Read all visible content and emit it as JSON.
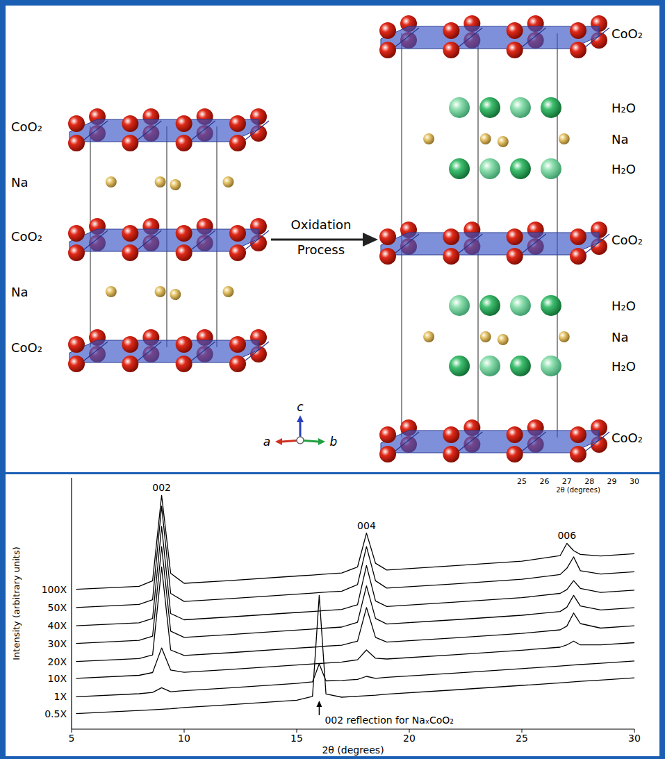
{
  "diagram": {
    "left": {
      "layers": [
        {
          "label": "CoO₂",
          "type": "slab"
        },
        {
          "label": "Na",
          "type": "ion"
        },
        {
          "label": "CoO₂",
          "type": "slab"
        },
        {
          "label": "Na",
          "type": "ion"
        },
        {
          "label": "CoO₂",
          "type": "slab"
        }
      ]
    },
    "arrow": {
      "lines": [
        "Oxidation",
        "Process"
      ]
    },
    "right": {
      "layers": [
        {
          "label": "CoO₂",
          "type": "slab"
        },
        {
          "label": "H₂O",
          "type": "water"
        },
        {
          "label": "Na",
          "type": "ion"
        },
        {
          "label": "H₂O",
          "type": "water"
        },
        {
          "label": "CoO₂",
          "type": "slab"
        },
        {
          "label": "H₂O",
          "type": "water"
        },
        {
          "label": "Na",
          "type": "ion"
        },
        {
          "label": "H₂O",
          "type": "water"
        },
        {
          "label": "CoO₂",
          "type": "slab"
        }
      ]
    },
    "axes": {
      "c": "c",
      "a": "a",
      "b": "b"
    }
  },
  "chart_data": {
    "type": "line",
    "x": [
      5.2,
      8,
      8.6,
      9.0,
      9.4,
      10,
      12,
      15,
      15.7,
      16.0,
      16.3,
      17,
      17.7,
      18.1,
      18.5,
      19,
      22,
      25,
      26.7,
      27.0,
      27.3,
      27.6,
      28.5,
      30
    ],
    "series": [
      {
        "name": "100X",
        "color": "#000000",
        "values": [
          55.6,
          56.8,
          59.0,
          93.0,
          62.0,
          58.0,
          59.1,
          60.9,
          61.3,
          61.5,
          61.7,
          62.1,
          64.5,
          78.0,
          66.0,
          63.3,
          65.0,
          66.8,
          69.0,
          73.9,
          71.0,
          69.5,
          68.9,
          69.8
        ]
      },
      {
        "name": "50X",
        "color": "#000000",
        "values": [
          48.4,
          49.6,
          51.5,
          88.7,
          54.0,
          50.8,
          51.9,
          53.7,
          54.1,
          54.3,
          54.5,
          54.9,
          57.5,
          72.6,
          59.0,
          56.1,
          57.8,
          59.6,
          61.5,
          64.0,
          68.5,
          63.0,
          61.7,
          62.6
        ]
      },
      {
        "name": "40X",
        "color": "#000000",
        "values": [
          41.1,
          42.3,
          44.0,
          80.6,
          46.0,
          43.5,
          44.6,
          46.4,
          46.8,
          47.0,
          47.2,
          47.6,
          49.5,
          65.1,
          51.0,
          48.8,
          50.5,
          52.3,
          54.0,
          55.5,
          59.1,
          56.0,
          54.4,
          55.3
        ]
      },
      {
        "name": "30X",
        "color": "#000000",
        "values": [
          34.1,
          35.3,
          37.0,
          72.6,
          39.0,
          36.5,
          37.6,
          39.4,
          39.8,
          40.0,
          40.2,
          40.6,
          42.5,
          57.0,
          44.0,
          41.8,
          43.5,
          45.3,
          46.8,
          48.5,
          53.2,
          49.0,
          47.4,
          48.3
        ]
      },
      {
        "name": "20X",
        "color": "#000000",
        "values": [
          26.9,
          28.1,
          29.5,
          64.5,
          31.5,
          29.3,
          30.4,
          32.2,
          32.6,
          32.8,
          33.0,
          33.4,
          35.0,
          48.4,
          36.5,
          34.6,
          36.3,
          38.1,
          39.5,
          41.0,
          46.2,
          42.0,
          40.2,
          41.1
        ]
      },
      {
        "name": "10X",
        "color": "#000000",
        "values": [
          20.2,
          21.4,
          22.5,
          32.3,
          23.5,
          22.6,
          23.7,
          25.5,
          25.9,
          26.1,
          26.3,
          26.7,
          27.6,
          31.5,
          28.2,
          27.9,
          29.6,
          31.4,
          32.6,
          33.5,
          35.0,
          33.5,
          33.5,
          34.4
        ]
      },
      {
        "name": "1X",
        "color": "#000000",
        "values": [
          12.9,
          14.1,
          14.6,
          16.5,
          14.9,
          15.3,
          16.4,
          18.2,
          18.8,
          26.0,
          19.2,
          19.4,
          19.8,
          21.0,
          20.2,
          20.6,
          22.3,
          24.1,
          25.1,
          25.3,
          25.5,
          25.7,
          26.2,
          27.1
        ]
      },
      {
        "name": "0.5X",
        "color": "#000000",
        "values": [
          6.2,
          7.4,
          7.7,
          7.9,
          8.1,
          8.6,
          9.7,
          11.5,
          13.0,
          53.2,
          14.0,
          12.7,
          13.1,
          13.3,
          13.5,
          13.9,
          15.6,
          17.4,
          18.4,
          18.6,
          18.8,
          19.0,
          19.5,
          20.4
        ]
      }
    ],
    "xlim": [
      5,
      30
    ],
    "xticks": [
      5,
      10,
      15,
      20,
      25,
      30
    ],
    "ylim": [
      0,
      100
    ],
    "x_label": "2θ (degrees)",
    "y_label": "Intensity (arbitrary units)",
    "tick_labels": "x",
    "peak_labels": [
      {
        "x": 9.0,
        "text": "002"
      },
      {
        "x": 18.1,
        "text": "004"
      },
      {
        "x": 27.0,
        "text": "006"
      }
    ],
    "top_axis": {
      "ticks": [
        25,
        26,
        27,
        28,
        29,
        30
      ],
      "label": "2θ (degrees)"
    },
    "annotation": {
      "x": 16.0,
      "text": "002 reflection for NaₓCoO₂"
    }
  }
}
